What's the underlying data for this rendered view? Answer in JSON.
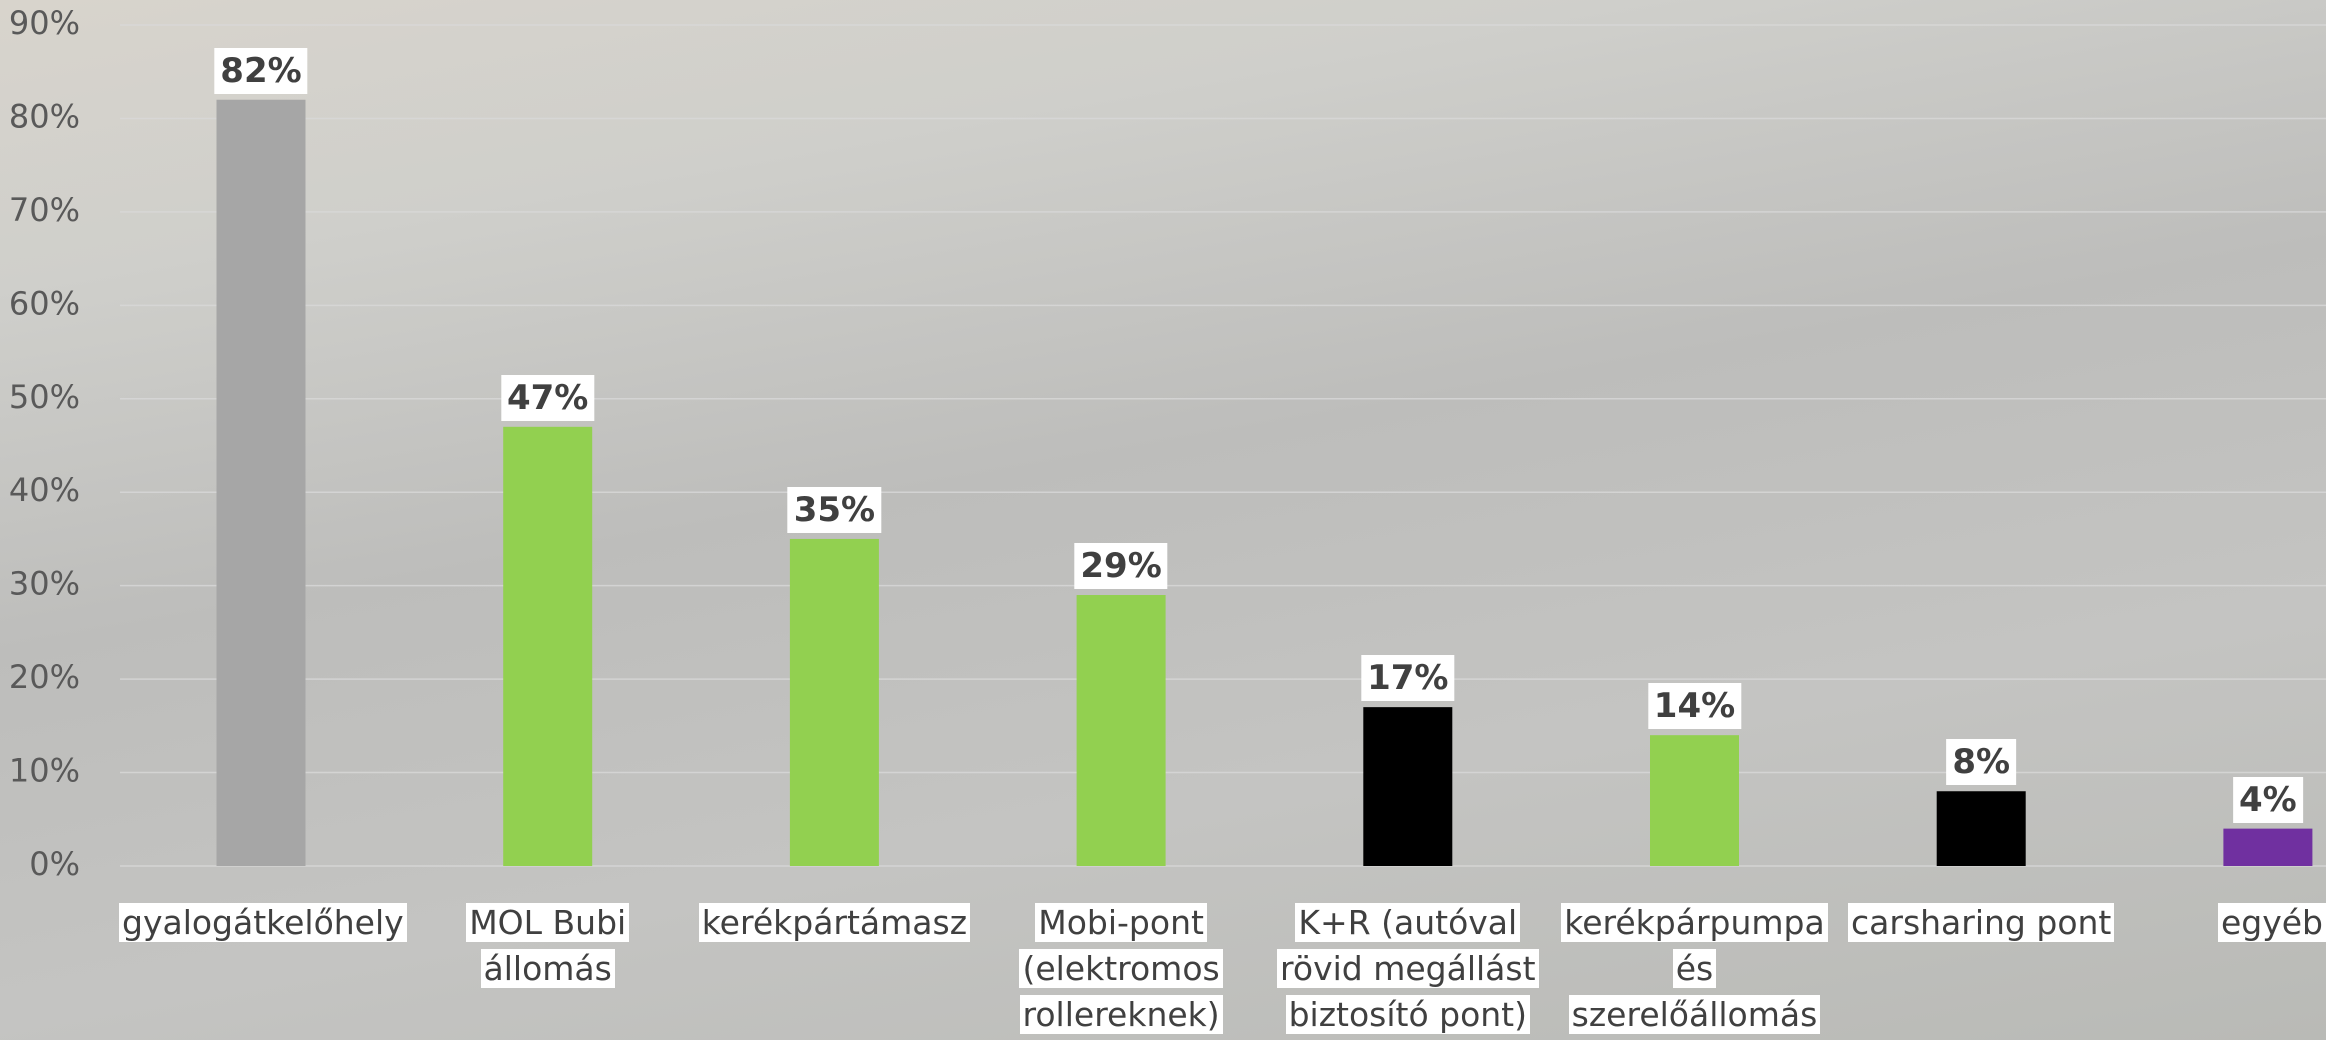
{
  "chart_data": {
    "type": "bar",
    "categories": [
      "gyalogátkelőhely",
      "MOL Bubi állomás",
      "kerékpártámasz",
      "Mobi-pont (elektromos rollereknek)",
      "K+R (autóval rövid megállást biztosító pont)",
      "kerékpárpumpa és szerelőállomás",
      "carsharing pont",
      "egyéb"
    ],
    "values": [
      82,
      47,
      35,
      29,
      17,
      14,
      8,
      4
    ],
    "value_labels": [
      "82%",
      "47%",
      "35%",
      "29%",
      "17%",
      "14%",
      "8%",
      "4%"
    ],
    "colors": [
      "#a6a6a6",
      "#92d050",
      "#92d050",
      "#92d050",
      "#000000",
      "#92d050",
      "#000000",
      "#7030a0"
    ],
    "ylim": [
      0,
      90
    ],
    "yticks": [
      {
        "value": 0,
        "label": "0%"
      },
      {
        "value": 10,
        "label": "10%"
      },
      {
        "value": 20,
        "label": "20%"
      },
      {
        "value": 30,
        "label": "30%"
      },
      {
        "value": 40,
        "label": "40%"
      },
      {
        "value": 50,
        "label": "50%"
      },
      {
        "value": 60,
        "label": "60%"
      },
      {
        "value": 70,
        "label": "70%"
      },
      {
        "value": 80,
        "label": "80%"
      },
      {
        "value": 90,
        "label": "90%"
      }
    ],
    "grid": true
  }
}
